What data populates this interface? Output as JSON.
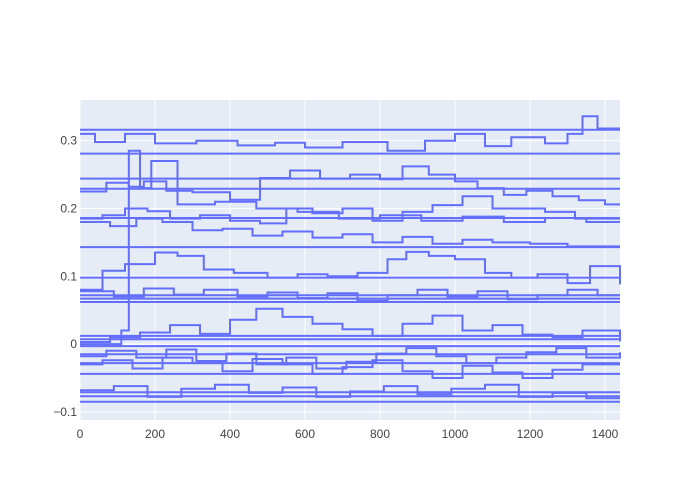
{
  "chart_data": {
    "type": "line",
    "line_shape": "step",
    "title": "",
    "xlabel": "",
    "ylabel": "",
    "xlim": [
      0,
      1440
    ],
    "ylim": [
      -0.112,
      0.36
    ],
    "x_ticks": [
      0,
      200,
      400,
      600,
      800,
      1000,
      1200,
      1400
    ],
    "x_tick_labels": [
      "0",
      "200",
      "400",
      "600",
      "800",
      "1000",
      "1200",
      "1400"
    ],
    "y_ticks": [
      -0.1,
      0,
      0.1,
      0.2,
      0.3
    ],
    "y_tick_labels": [
      "−0.1",
      "0",
      "0.1",
      "0.2",
      "0.3"
    ],
    "grid": true,
    "legend": "none",
    "colors": {
      "line": "#636efa",
      "plot_bg": "#e5ecf6",
      "grid": "#ffffff",
      "paper_bg": "#ffffff"
    },
    "series": [
      {
        "x": [
          0,
          1440
        ],
        "values": [
          0.316,
          0.316
        ]
      },
      {
        "x": [
          0,
          1440
        ],
        "values": [
          0.281,
          0.281
        ]
      },
      {
        "x": [
          0,
          1440
        ],
        "values": [
          0.244,
          0.244
        ]
      },
      {
        "x": [
          0,
          1440
        ],
        "values": [
          0.229,
          0.229
        ]
      },
      {
        "x": [
          0,
          1440
        ],
        "values": [
          0.186,
          0.186
        ]
      },
      {
        "x": [
          0,
          1440
        ],
        "values": [
          0.143,
          0.143
        ]
      },
      {
        "x": [
          0,
          1440
        ],
        "values": [
          0.098,
          0.098
        ]
      },
      {
        "x": [
          0,
          1440
        ],
        "values": [
          0.072,
          0.072
        ]
      },
      {
        "x": [
          0,
          1440
        ],
        "values": [
          0.067,
          0.067
        ]
      },
      {
        "x": [
          0,
          1440
        ],
        "values": [
          0.062,
          0.062
        ]
      },
      {
        "x": [
          0,
          1440
        ],
        "values": [
          0.012,
          0.012
        ]
      },
      {
        "x": [
          0,
          1440
        ],
        "values": [
          0.007,
          0.007
        ]
      },
      {
        "x": [
          0,
          1440
        ],
        "values": [
          -0.003,
          -0.003
        ]
      },
      {
        "x": [
          0,
          1440
        ],
        "values": [
          -0.015,
          -0.015
        ]
      },
      {
        "x": [
          0,
          1440
        ],
        "values": [
          -0.028,
          -0.028
        ]
      },
      {
        "x": [
          0,
          1440
        ],
        "values": [
          -0.044,
          -0.044
        ]
      },
      {
        "x": [
          0,
          1440
        ],
        "values": [
          -0.071,
          -0.071
        ]
      },
      {
        "x": [
          0,
          1440
        ],
        "values": [
          -0.077,
          -0.077
        ]
      },
      {
        "x": [
          0,
          1440
        ],
        "values": [
          -0.085,
          -0.085
        ]
      },
      {
        "x": [
          0,
          40,
          120,
          200,
          310,
          420,
          520,
          600,
          700,
          820,
          920,
          1000,
          1080,
          1150,
          1240,
          1300,
          1340,
          1380,
          1440
        ],
        "values": [
          0.31,
          0.298,
          0.31,
          0.296,
          0.3,
          0.293,
          0.297,
          0.29,
          0.298,
          0.285,
          0.3,
          0.31,
          0.292,
          0.305,
          0.296,
          0.31,
          0.336,
          0.318,
          0.318
        ]
      },
      {
        "x": [
          0,
          70,
          130,
          170,
          230,
          300,
          400,
          480,
          560,
          640,
          720,
          800,
          860,
          930,
          1000,
          1060,
          1130,
          1190,
          1260,
          1330,
          1400,
          1440
        ],
        "values": [
          0.225,
          0.238,
          0.232,
          0.24,
          0.226,
          0.224,
          0.213,
          0.245,
          0.256,
          0.244,
          0.25,
          0.243,
          0.262,
          0.25,
          0.24,
          0.23,
          0.22,
          0.226,
          0.218,
          0.212,
          0.206,
          0.206
        ]
      },
      {
        "x": [
          0,
          60,
          120,
          180,
          240,
          320,
          400,
          480,
          550,
          620,
          700,
          780,
          860,
          940,
          1020,
          1100,
          1170,
          1240,
          1320,
          1440
        ],
        "values": [
          0.185,
          0.19,
          0.2,
          0.196,
          0.185,
          0.19,
          0.182,
          0.178,
          0.2,
          0.193,
          0.2,
          0.182,
          0.195,
          0.205,
          0.218,
          0.2,
          0.2,
          0.195,
          0.185,
          0.185
        ]
      },
      {
        "x": [
          0,
          80,
          150,
          220,
          300,
          380,
          460,
          540,
          620,
          700,
          780,
          860,
          940,
          1020,
          1100,
          1200,
          1300,
          1440
        ],
        "values": [
          0.18,
          0.174,
          0.185,
          0.18,
          0.168,
          0.17,
          0.16,
          0.166,
          0.157,
          0.162,
          0.15,
          0.158,
          0.148,
          0.154,
          0.15,
          0.148,
          0.144,
          0.144
        ]
      },
      {
        "x": [
          0,
          60,
          120,
          200,
          260,
          330,
          410,
          500,
          580,
          660,
          740,
          820,
          870,
          930,
          1000,
          1080,
          1150,
          1220,
          1300,
          1360,
          1440
        ],
        "values": [
          0.08,
          0.108,
          0.118,
          0.135,
          0.13,
          0.11,
          0.105,
          0.098,
          0.103,
          0.1,
          0.105,
          0.125,
          0.136,
          0.13,
          0.125,
          0.105,
          0.098,
          0.103,
          0.09,
          0.115,
          0.088
        ]
      },
      {
        "x": [
          0,
          90,
          170,
          250,
          330,
          420,
          500,
          580,
          660,
          740,
          820,
          900,
          980,
          1060,
          1140,
          1220,
          1300,
          1380,
          1440
        ],
        "values": [
          0.078,
          0.07,
          0.082,
          0.073,
          0.08,
          0.07,
          0.076,
          0.068,
          0.075,
          0.064,
          0.072,
          0.08,
          0.07,
          0.078,
          0.066,
          0.072,
          0.08,
          0.072,
          0.072
        ]
      },
      {
        "x": [
          0,
          80,
          160,
          240,
          320,
          400,
          470,
          540,
          620,
          700,
          780,
          860,
          940,
          1020,
          1100,
          1180,
          1260,
          1340,
          1440
        ],
        "values": [
          0.003,
          0.01,
          0.017,
          0.028,
          0.015,
          0.036,
          0.052,
          0.04,
          0.03,
          0.022,
          0.012,
          0.03,
          0.042,
          0.02,
          0.028,
          0.014,
          0.01,
          0.02,
          0.004
        ]
      },
      {
        "x": [
          0,
          70,
          150,
          230,
          310,
          390,
          470,
          550,
          630,
          710,
          790,
          870,
          950,
          1030,
          1110,
          1190,
          1270,
          1350,
          1440
        ],
        "values": [
          -0.018,
          -0.01,
          -0.02,
          -0.008,
          -0.025,
          -0.014,
          -0.03,
          -0.02,
          -0.036,
          -0.026,
          -0.014,
          -0.006,
          -0.018,
          -0.028,
          -0.02,
          -0.012,
          -0.006,
          -0.02,
          -0.012
        ]
      },
      {
        "x": [
          0,
          90,
          180,
          270,
          360,
          450,
          540,
          630,
          720,
          810,
          900,
          990,
          1080,
          1170,
          1260,
          1350,
          1440
        ],
        "values": [
          -0.068,
          -0.062,
          -0.078,
          -0.066,
          -0.06,
          -0.072,
          -0.064,
          -0.078,
          -0.07,
          -0.062,
          -0.074,
          -0.066,
          -0.06,
          -0.078,
          -0.072,
          -0.08,
          -0.08
        ]
      },
      {
        "x": [
          0,
          60,
          140,
          220,
          300,
          380,
          460,
          540,
          620,
          700,
          780,
          860,
          940,
          1020,
          1100,
          1180,
          1260,
          1340,
          1440
        ],
        "values": [
          -0.03,
          -0.024,
          -0.036,
          -0.02,
          -0.028,
          -0.04,
          -0.022,
          -0.03,
          -0.044,
          -0.034,
          -0.024,
          -0.04,
          -0.05,
          -0.032,
          -0.042,
          -0.05,
          -0.038,
          -0.03,
          -0.03
        ]
      },
      {
        "x": [
          0,
          110,
          130,
          160,
          190,
          260,
          360,
          470,
          580,
          690,
          800,
          910,
          1020,
          1130,
          1240,
          1350,
          1440
        ],
        "values": [
          0.0,
          0.02,
          0.285,
          0.23,
          0.27,
          0.206,
          0.21,
          0.2,
          0.195,
          0.185,
          0.19,
          0.182,
          0.188,
          0.18,
          0.186,
          0.18,
          0.18
        ]
      }
    ]
  }
}
